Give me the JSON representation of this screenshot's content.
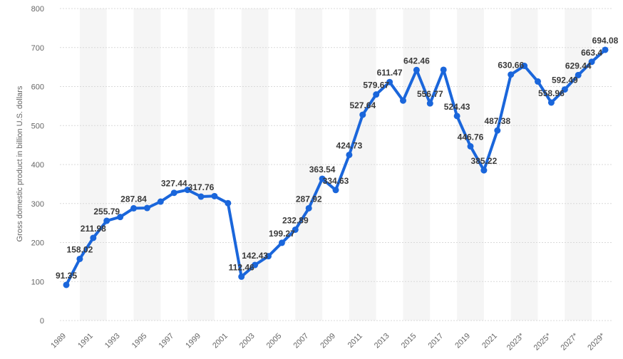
{
  "chart_data": {
    "type": "line",
    "title": "",
    "xlabel": "",
    "ylabel": "Gross domestic product in billion U.S. dollars",
    "ylim": [
      0,
      800
    ],
    "yticks": [
      0,
      100,
      200,
      300,
      400,
      500,
      600,
      700,
      800
    ],
    "grid": true,
    "line_color": "#1a66db",
    "categories": [
      "1989",
      "1990",
      "1991",
      "1992",
      "1993",
      "1994",
      "1995",
      "1996",
      "1997",
      "1998",
      "1999",
      "2000",
      "2001",
      "2002",
      "2003",
      "2004",
      "2005",
      "2006",
      "2007",
      "2008",
      "2009",
      "2010",
      "2011",
      "2012",
      "2013",
      "2014",
      "2015",
      "2016",
      "2017",
      "2018",
      "2019",
      "2020",
      "2021",
      "2022",
      "2023*",
      "2024*",
      "2025*",
      "2026*",
      "2027*",
      "2028*",
      "2029*"
    ],
    "tick_labels": [
      "1989",
      "1991",
      "1993",
      "1995",
      "1997",
      "1999",
      "2001",
      "2003",
      "2005",
      "2007",
      "2009",
      "2011",
      "2013",
      "2015",
      "2017",
      "2019",
      "2021",
      "2023*",
      "2025*",
      "2027*",
      "2029*"
    ],
    "values": [
      91.35,
      158.02,
      211.98,
      255.79,
      265.5,
      287.84,
      288.5,
      305.0,
      327.44,
      335.0,
      317.76,
      319.0,
      301.0,
      112.46,
      142.43,
      165.0,
      199.27,
      232.89,
      287.92,
      363.54,
      334.63,
      424.73,
      527.64,
      579.67,
      611.47,
      564.0,
      642.46,
      556.77,
      643.0,
      524.43,
      446.76,
      385.22,
      487.38,
      630.66,
      653.0,
      613.0,
      558.96,
      592.49,
      629.44,
      663.4,
      694.08
    ],
    "labels": [
      {
        "i": 0,
        "text": "91.35"
      },
      {
        "i": 1,
        "text": "158.02"
      },
      {
        "i": 2,
        "text": "211.98"
      },
      {
        "i": 3,
        "text": "255.79"
      },
      {
        "i": 5,
        "text": "287.84"
      },
      {
        "i": 8,
        "text": "327.44"
      },
      {
        "i": 10,
        "text": "317.76"
      },
      {
        "i": 13,
        "text": "112.46"
      },
      {
        "i": 14,
        "text": "142.43"
      },
      {
        "i": 16,
        "text": "199.27"
      },
      {
        "i": 17,
        "text": "232.89"
      },
      {
        "i": 18,
        "text": "287.92"
      },
      {
        "i": 19,
        "text": "363.54"
      },
      {
        "i": 20,
        "text": "334.63"
      },
      {
        "i": 21,
        "text": "424.73"
      },
      {
        "i": 22,
        "text": "527.64"
      },
      {
        "i": 23,
        "text": "579.67"
      },
      {
        "i": 24,
        "text": "611.47"
      },
      {
        "i": 26,
        "text": "642.46"
      },
      {
        "i": 27,
        "text": "556.77"
      },
      {
        "i": 29,
        "text": "524.43"
      },
      {
        "i": 30,
        "text": "446.76"
      },
      {
        "i": 31,
        "text": "385.22"
      },
      {
        "i": 32,
        "text": "487.38"
      },
      {
        "i": 33,
        "text": "630.66"
      },
      {
        "i": 36,
        "text": "558.96"
      },
      {
        "i": 37,
        "text": "592.49"
      },
      {
        "i": 38,
        "text": "629.44"
      },
      {
        "i": 39,
        "text": "663.4"
      },
      {
        "i": 40,
        "text": "694.08"
      }
    ]
  }
}
